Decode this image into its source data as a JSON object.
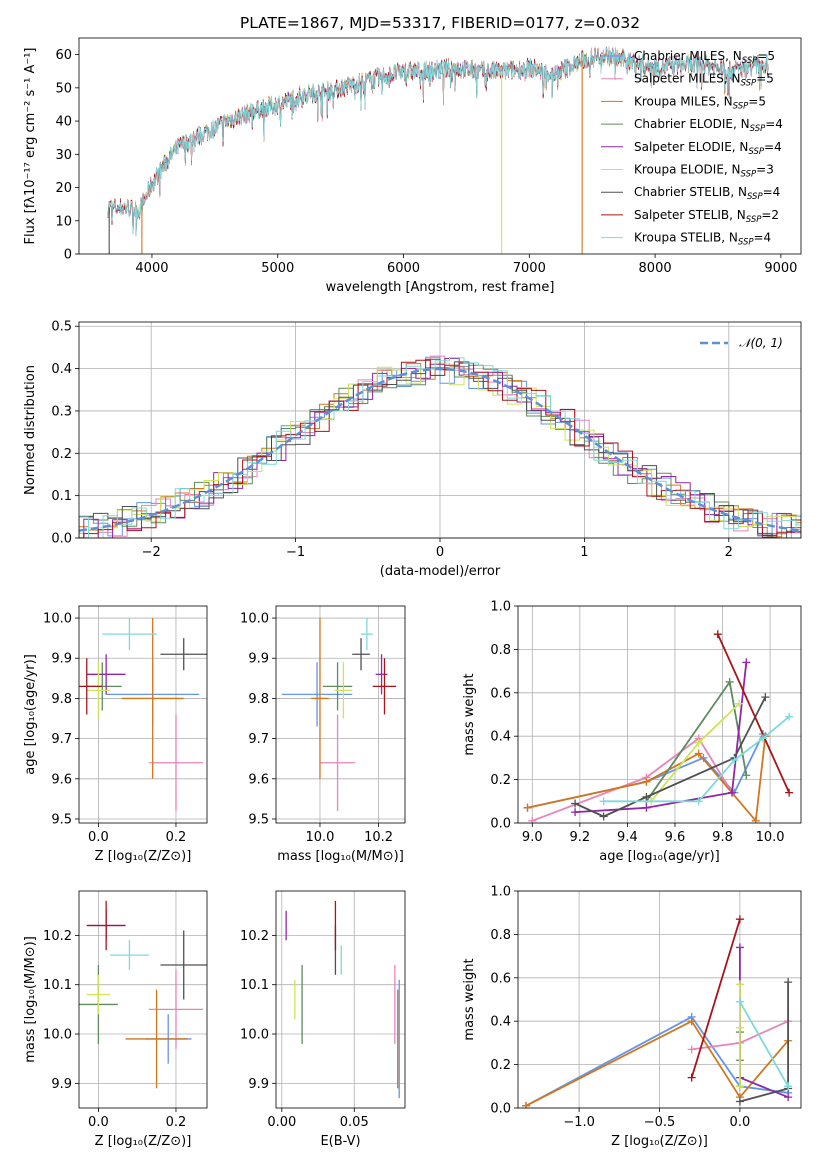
{
  "colors": {
    "Chabrier MILES": "#6495ed",
    "Salpeter MILES": "#e884b8",
    "Kroupa MILES": "#d2761e",
    "Chabrier ELODIE": "#5e8c5e",
    "Salpeter ELODIE": "#9126a8",
    "Kroupa ELODIE": "#cfe35a",
    "Chabrier STELIB": "#505050",
    "Salpeter STELIB": "#a8141a",
    "Kroupa STELIB": "#7fd8dc"
  },
  "chart_data": [
    {
      "id": "spectrum",
      "type": "line",
      "title": "PLATE=1867, MJD=53317, FIBERID=0177, z=0.032",
      "xlabel": "wavelength [Angstrom, rest frame]",
      "ylabel": "Flux [fλ10⁻¹⁷ erg cm⁻² s⁻¹ A⁻¹]",
      "xlim": [
        3420,
        9160
      ],
      "ylim": [
        0,
        65
      ],
      "xticks": [
        "4000",
        "5000",
        "6000",
        "7000",
        "8000",
        "9000"
      ],
      "yticks": [
        "0",
        "10",
        "20",
        "30",
        "40",
        "50",
        "60"
      ],
      "continuum": {
        "x": [
          3650,
          3800,
          3900,
          4000,
          4100,
          4200,
          4400,
          4600,
          4800,
          5000,
          5200,
          5400,
          5600,
          5800,
          6000,
          6200,
          6400,
          6600,
          6800,
          7000,
          7200,
          7400,
          7600,
          7800,
          8000,
          8200,
          8400,
          8600,
          8800,
          8900
        ],
        "y": [
          14,
          14,
          13,
          21,
          27,
          32,
          36,
          40,
          43,
          45,
          48,
          49,
          51,
          53,
          55,
          55,
          56,
          55,
          55,
          56,
          54,
          58,
          60,
          58,
          56,
          57,
          57,
          55,
          57,
          57
        ]
      },
      "legend": [
        {
          "label": "Chabrier MILES, N",
          "sub": "SSP",
          "suffix": "=5"
        },
        {
          "label": "Salpeter MILES, N",
          "sub": "SSP",
          "suffix": "=5"
        },
        {
          "label": "Kroupa MILES, N",
          "sub": "SSP",
          "suffix": "=5"
        },
        {
          "label": "Chabrier ELODIE, N",
          "sub": "SSP",
          "suffix": "=4"
        },
        {
          "label": "Salpeter ELODIE, N",
          "sub": "SSP",
          "suffix": "=4"
        },
        {
          "label": "Kroupa ELODIE, N",
          "sub": "SSP",
          "suffix": "=3"
        },
        {
          "label": "Chabrier STELIB, N",
          "sub": "SSP",
          "suffix": "=4"
        },
        {
          "label": "Salpeter STELIB, N",
          "sub": "SSP",
          "suffix": "=2"
        },
        {
          "label": "Kroupa STELIB, N",
          "sub": "SSP",
          "suffix": "=4"
        }
      ]
    },
    {
      "id": "residuals",
      "type": "bar",
      "xlabel": "(data-model)/error",
      "ylabel": "Normed distribution",
      "xlim": [
        -2.5,
        2.5
      ],
      "ylim": [
        0,
        0.51
      ],
      "xticks": [
        "−2",
        "−1",
        "0",
        "1",
        "2"
      ],
      "yticks": [
        "0.0",
        "0.1",
        "0.2",
        "0.3",
        "0.4",
        "0.5"
      ],
      "legend_label": "𝒩(0, 1)",
      "gaussian": {
        "mean": 0,
        "sigma": 1
      }
    },
    {
      "id": "age_vs_Z",
      "type": "scatter",
      "xlabel": "Z [log₁₀(Z/Z⊙)]",
      "ylabel": "age  [log₁₀(age/yr)]",
      "xlim": [
        -0.05,
        0.28
      ],
      "ylim": [
        9.49,
        10.03
      ],
      "xticks": [
        "0.0",
        "0.2"
      ],
      "yticks": [
        "9.5",
        "9.6",
        "9.7",
        "9.8",
        "9.9",
        "10.0"
      ],
      "points": [
        {
          "model": "Chabrier MILES",
          "x": 0.14,
          "y": 9.81,
          "xe": 0.12,
          "ye": 0.08
        },
        {
          "model": "Salpeter MILES",
          "x": 0.2,
          "y": 9.64,
          "xe": 0.07,
          "ye": 0.12
        },
        {
          "model": "Kroupa MILES",
          "x": 0.14,
          "y": 9.8,
          "xe": 0.08,
          "ye": 0.2
        },
        {
          "model": "Chabrier ELODIE",
          "x": 0.01,
          "y": 9.83,
          "xe": 0.05,
          "ye": 0.06
        },
        {
          "model": "Salpeter ELODIE",
          "x": 0.02,
          "y": 9.86,
          "xe": 0.05,
          "ye": 0.05
        },
        {
          "model": "Kroupa ELODIE",
          "x": 0.0,
          "y": 9.82,
          "xe": 0.03,
          "ye": 0.07
        },
        {
          "model": "Chabrier STELIB",
          "x": 0.22,
          "y": 9.91,
          "xe": 0.06,
          "ye": 0.04
        },
        {
          "model": "Salpeter STELIB",
          "x": -0.03,
          "y": 9.83,
          "xe": 0.04,
          "ye": 0.07
        },
        {
          "model": "Kroupa STELIB",
          "x": 0.08,
          "y": 9.96,
          "xe": 0.07,
          "ye": 0.04
        }
      ]
    },
    {
      "id": "age_vs_mass",
      "type": "scatter",
      "xlabel": "mass [log₁₀(M/M⊙)]",
      "ylabel": "",
      "xlim": [
        9.85,
        10.29
      ],
      "ylim": [
        9.49,
        10.03
      ],
      "xticks": [
        "10.0",
        "10.2"
      ],
      "yticks": [
        "9.5",
        "9.6",
        "9.7",
        "9.8",
        "9.9",
        "10.0"
      ],
      "points": [
        {
          "model": "Chabrier MILES",
          "x": 9.99,
          "y": 9.81,
          "xe": 0.12,
          "ye": 0.08
        },
        {
          "model": "Salpeter MILES",
          "x": 10.06,
          "y": 9.64,
          "xe": 0.06,
          "ye": 0.12
        },
        {
          "model": "Kroupa MILES",
          "x": 10.0,
          "y": 9.8,
          "xe": 0.03,
          "ye": 0.2
        },
        {
          "model": "Chabrier ELODIE",
          "x": 10.06,
          "y": 9.83,
          "xe": 0.05,
          "ye": 0.06
        },
        {
          "model": "Salpeter ELODIE",
          "x": 10.21,
          "y": 9.86,
          "xe": 0.02,
          "ye": 0.05
        },
        {
          "model": "Kroupa ELODIE",
          "x": 10.08,
          "y": 9.82,
          "xe": 0.03,
          "ye": 0.07
        },
        {
          "model": "Chabrier STELIB",
          "x": 10.14,
          "y": 9.91,
          "xe": 0.03,
          "ye": 0.04
        },
        {
          "model": "Salpeter STELIB",
          "x": 10.22,
          "y": 9.83,
          "xe": 0.04,
          "ye": 0.07
        },
        {
          "model": "Kroupa STELIB",
          "x": 10.16,
          "y": 9.96,
          "xe": 0.02,
          "ye": 0.04
        }
      ]
    },
    {
      "id": "weight_vs_age",
      "type": "line",
      "xlabel": "age  [log₁₀(age/yr)]",
      "ylabel": "mass weight",
      "xlim": [
        8.94,
        10.13
      ],
      "ylim": [
        0,
        1.0
      ],
      "xticks": [
        "9.0",
        "9.2",
        "9.4",
        "9.6",
        "9.8",
        "10.0"
      ],
      "yticks": [
        "0.0",
        "0.2",
        "0.4",
        "0.6",
        "0.8",
        "1.0"
      ],
      "series": [
        {
          "model": "Chabrier MILES",
          "x": [
            8.98,
            9.48,
            9.72,
            9.85,
            9.97
          ],
          "y": [
            0.07,
            0.19,
            0.3,
            0.14,
            0.41
          ]
        },
        {
          "model": "Salpeter MILES",
          "x": [
            9.0,
            9.48,
            9.7,
            9.84
          ],
          "y": [
            0.01,
            0.21,
            0.39,
            0.14
          ]
        },
        {
          "model": "Kroupa MILES",
          "x": [
            8.98,
            9.48,
            9.7,
            9.94,
            9.98
          ],
          "y": [
            0.07,
            0.19,
            0.32,
            0.01,
            0.4
          ]
        },
        {
          "model": "Chabrier ELODIE",
          "x": [
            9.48,
            9.83,
            9.9
          ],
          "y": [
            0.1,
            0.65,
            0.22
          ]
        },
        {
          "model": "Salpeter ELODIE",
          "x": [
            9.18,
            9.48,
            9.84,
            9.9
          ],
          "y": [
            0.05,
            0.07,
            0.14,
            0.74
          ]
        },
        {
          "model": "Kroupa ELODIE",
          "x": [
            9.5,
            9.7,
            9.87
          ],
          "y": [
            0.1,
            0.37,
            0.55
          ]
        },
        {
          "model": "Chabrier STELIB",
          "x": [
            9.18,
            9.3,
            9.48,
            9.85,
            9.98
          ],
          "y": [
            0.09,
            0.03,
            0.12,
            0.3,
            0.58
          ]
        },
        {
          "model": "Salpeter STELIB",
          "x": [
            9.78,
            10.08
          ],
          "y": [
            0.87,
            0.14
          ]
        },
        {
          "model": "Kroupa STELIB",
          "x": [
            9.3,
            9.7,
            9.85,
            9.97,
            10.08
          ],
          "y": [
            0.1,
            0.1,
            0.29,
            0.39,
            0.49
          ]
        }
      ]
    },
    {
      "id": "mass_vs_Z",
      "type": "scatter",
      "xlabel": "Z [log₁₀(Z/Z⊙)]",
      "ylabel": "mass [log₁₀(M/M⊙)]",
      "xlim": [
        -0.05,
        0.28
      ],
      "ylim": [
        9.85,
        10.29
      ],
      "xticks": [
        "0.0",
        "0.2"
      ],
      "yticks": [
        "9.9",
        "10.0",
        "10.1",
        "10.2"
      ],
      "points": [
        {
          "model": "Chabrier MILES",
          "x": 0.18,
          "y": 9.99,
          "xe": 0.06,
          "ye": 0.05
        },
        {
          "model": "Salpeter MILES",
          "x": 0.2,
          "y": 10.05,
          "xe": 0.07,
          "ye": 0.08
        },
        {
          "model": "Kroupa MILES",
          "x": 0.15,
          "y": 9.99,
          "xe": 0.08,
          "ye": 0.1
        },
        {
          "model": "Chabrier ELODIE",
          "x": 0.0,
          "y": 10.06,
          "xe": 0.05,
          "ye": 0.08
        },
        {
          "model": "Salpeter ELODIE",
          "x": 0.02,
          "y": 10.22,
          "xe": 0.05,
          "ye": 0.03
        },
        {
          "model": "Kroupa ELODIE",
          "x": 0.0,
          "y": 10.08,
          "xe": 0.03,
          "ye": 0.04
        },
        {
          "model": "Chabrier STELIB",
          "x": 0.22,
          "y": 10.14,
          "xe": 0.06,
          "ye": 0.07
        },
        {
          "model": "Salpeter STELIB",
          "x": 0.02,
          "y": 10.22,
          "xe": 0.05,
          "ye": 0.05
        },
        {
          "model": "Kroupa STELIB",
          "x": 0.08,
          "y": 10.16,
          "xe": 0.05,
          "ye": 0.03
        }
      ]
    },
    {
      "id": "mass_vs_EBV",
      "type": "scatter",
      "xlabel": "E(B-V)",
      "ylabel": "",
      "xlim": [
        -0.004,
        0.085
      ],
      "ylim": [
        9.85,
        10.29
      ],
      "xticks": [
        "0.00",
        "0.05"
      ],
      "yticks": [
        "9.9",
        "10.0",
        "10.1",
        "10.2"
      ],
      "points": [
        {
          "model": "Chabrier MILES",
          "x": 0.081,
          "y": 9.99,
          "xe": 0,
          "ye": 0.12
        },
        {
          "model": "Salpeter MILES",
          "x": 0.078,
          "y": 10.06,
          "xe": 0,
          "ye": 0.08
        },
        {
          "model": "Kroupa MILES",
          "x": 0.08,
          "y": 9.99,
          "xe": 0,
          "ye": 0.1
        },
        {
          "model": "Chabrier ELODIE",
          "x": 0.014,
          "y": 10.06,
          "xe": 0,
          "ye": 0.08
        },
        {
          "model": "Salpeter ELODIE",
          "x": 0.003,
          "y": 10.22,
          "xe": 0,
          "ye": 0.03
        },
        {
          "model": "Kroupa ELODIE",
          "x": 0.009,
          "y": 10.07,
          "xe": 0,
          "ye": 0.04
        },
        {
          "model": "Chabrier STELIB",
          "x": 0.037,
          "y": 10.17,
          "xe": 0,
          "ye": 0.05
        },
        {
          "model": "Salpeter STELIB",
          "x": 0.037,
          "y": 10.22,
          "xe": 0,
          "ye": 0.05
        },
        {
          "model": "Kroupa STELIB",
          "x": 0.041,
          "y": 10.15,
          "xe": 0,
          "ye": 0.03
        }
      ]
    },
    {
      "id": "weight_vs_Z",
      "type": "line",
      "xlabel": "Z [log₁₀(Z/Z⊙)]",
      "ylabel": "mass weight",
      "xlim": [
        -1.38,
        0.38
      ],
      "ylim": [
        0,
        1.0
      ],
      "xticks": [
        "−1.0",
        "−0.5",
        "0.0"
      ],
      "yticks": [
        "0.0",
        "0.2",
        "0.4",
        "0.6",
        "0.8",
        "1.0"
      ],
      "series": [
        {
          "model": "Chabrier MILES",
          "x": [
            -1.33,
            -0.3,
            0.0,
            0.3
          ],
          "y": [
            0.01,
            0.42,
            0.1,
            0.07
          ]
        },
        {
          "model": "Salpeter MILES",
          "x": [
            -0.3,
            0.0,
            0.3
          ],
          "y": [
            0.27,
            0.3,
            0.4
          ]
        },
        {
          "model": "Kroupa MILES",
          "x": [
            -1.33,
            -0.3,
            0.0,
            0.3
          ],
          "y": [
            0.01,
            0.4,
            0.05,
            0.31
          ]
        },
        {
          "model": "Chabrier ELODIE",
          "x": [
            0.0,
            0.0,
            0.0
          ],
          "y": [
            0.35,
            0.22,
            0.1
          ]
        },
        {
          "model": "Salpeter ELODIE",
          "x": [
            0.0,
            0.0,
            0.3
          ],
          "y": [
            0.74,
            0.14,
            0.05
          ]
        },
        {
          "model": "Kroupa ELODIE",
          "x": [
            0.0,
            0.0,
            0.0
          ],
          "y": [
            0.57,
            0.37,
            0.1
          ]
        },
        {
          "model": "Chabrier STELIB",
          "x": [
            0.0,
            0.3,
            0.3
          ],
          "y": [
            0.03,
            0.09,
            0.58
          ]
        },
        {
          "model": "Salpeter STELIB",
          "x": [
            -0.3,
            0.0
          ],
          "y": [
            0.14,
            0.87
          ]
        },
        {
          "model": "Kroupa STELIB",
          "x": [
            0.0,
            0.3,
            0.3
          ],
          "y": [
            0.49,
            0.1,
            0.1
          ]
        }
      ]
    }
  ]
}
